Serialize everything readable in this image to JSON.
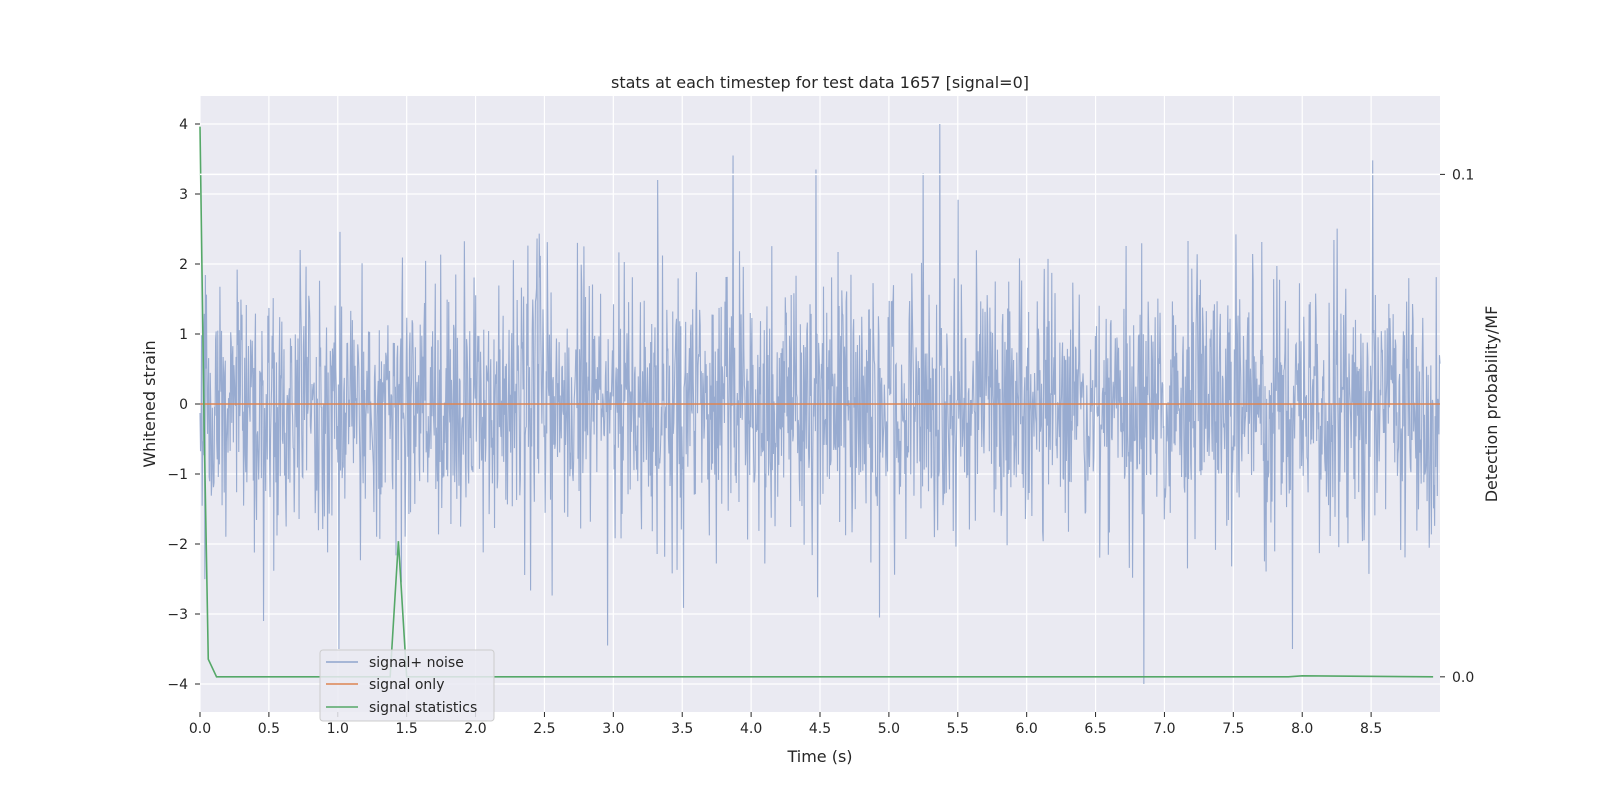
{
  "chart_data": {
    "type": "line",
    "title": "stats at each timestep for test data 1657 [signal=0]",
    "xlabel": "Time (s)",
    "ylabel": "Whitened strain",
    "y2label": "Detection probability/MF",
    "xlim": [
      0.0,
      9.0
    ],
    "ylim": [
      -4.4,
      4.4
    ],
    "y2lim": [
      -0.007,
      0.1156
    ],
    "x_ticks": [
      "0.0",
      "0.5",
      "1.0",
      "1.5",
      "2.0",
      "2.5",
      "3.0",
      "3.5",
      "4.0",
      "4.5",
      "5.0",
      "5.5",
      "6.0",
      "6.5",
      "7.0",
      "7.5",
      "8.0",
      "8.5"
    ],
    "y_ticks": [
      "4",
      "3",
      "2",
      "1",
      "0",
      "−1",
      "−2",
      "−3",
      "−4"
    ],
    "y2_ticks": [
      "0.1",
      "0.0"
    ],
    "grid": true,
    "legend_position": "lower-left",
    "series": [
      {
        "name": "signal+ noise",
        "axis": "left",
        "color": "#8fa4cc",
        "description_values": "whitened noise, approx. Gaussian, mostly within -2..2 with peaks near 4.0 (t=5.4) and -4.0 (t=6.85)",
        "x_range": [
          0.0,
          9.0
        ],
        "sample_count": 2304,
        "peaks": [
          {
            "x": 5.37,
            "y": 4.0
          },
          {
            "x": 3.87,
            "y": 3.55
          },
          {
            "x": 8.51,
            "y": 3.48
          },
          {
            "x": 4.47,
            "y": 3.35
          },
          {
            "x": 5.25,
            "y": 3.3
          },
          {
            "x": 6.85,
            "y": -4.0
          },
          {
            "x": 1.01,
            "y": -3.5
          },
          {
            "x": 2.96,
            "y": -3.45
          },
          {
            "x": 7.93,
            "y": -3.5
          },
          {
            "x": 4.93,
            "y": -3.05
          },
          {
            "x": 0.46,
            "y": -3.1
          }
        ]
      },
      {
        "name": "signal only",
        "axis": "left",
        "color": "#dd8452",
        "x": [
          0.0,
          9.0
        ],
        "y": [
          0.0,
          0.0
        ]
      },
      {
        "name": "signal statistics",
        "axis": "right",
        "color": "#55a868",
        "x": [
          0.0,
          0.03,
          0.06,
          0.12,
          1.38,
          1.44,
          1.5,
          5.0,
          7.9,
          8.0,
          8.95
        ],
        "y": [
          0.1095,
          0.05,
          0.0035,
          0.0,
          0.0,
          0.027,
          0.0,
          0.0,
          0.0,
          0.0002,
          0.0
        ]
      }
    ]
  }
}
